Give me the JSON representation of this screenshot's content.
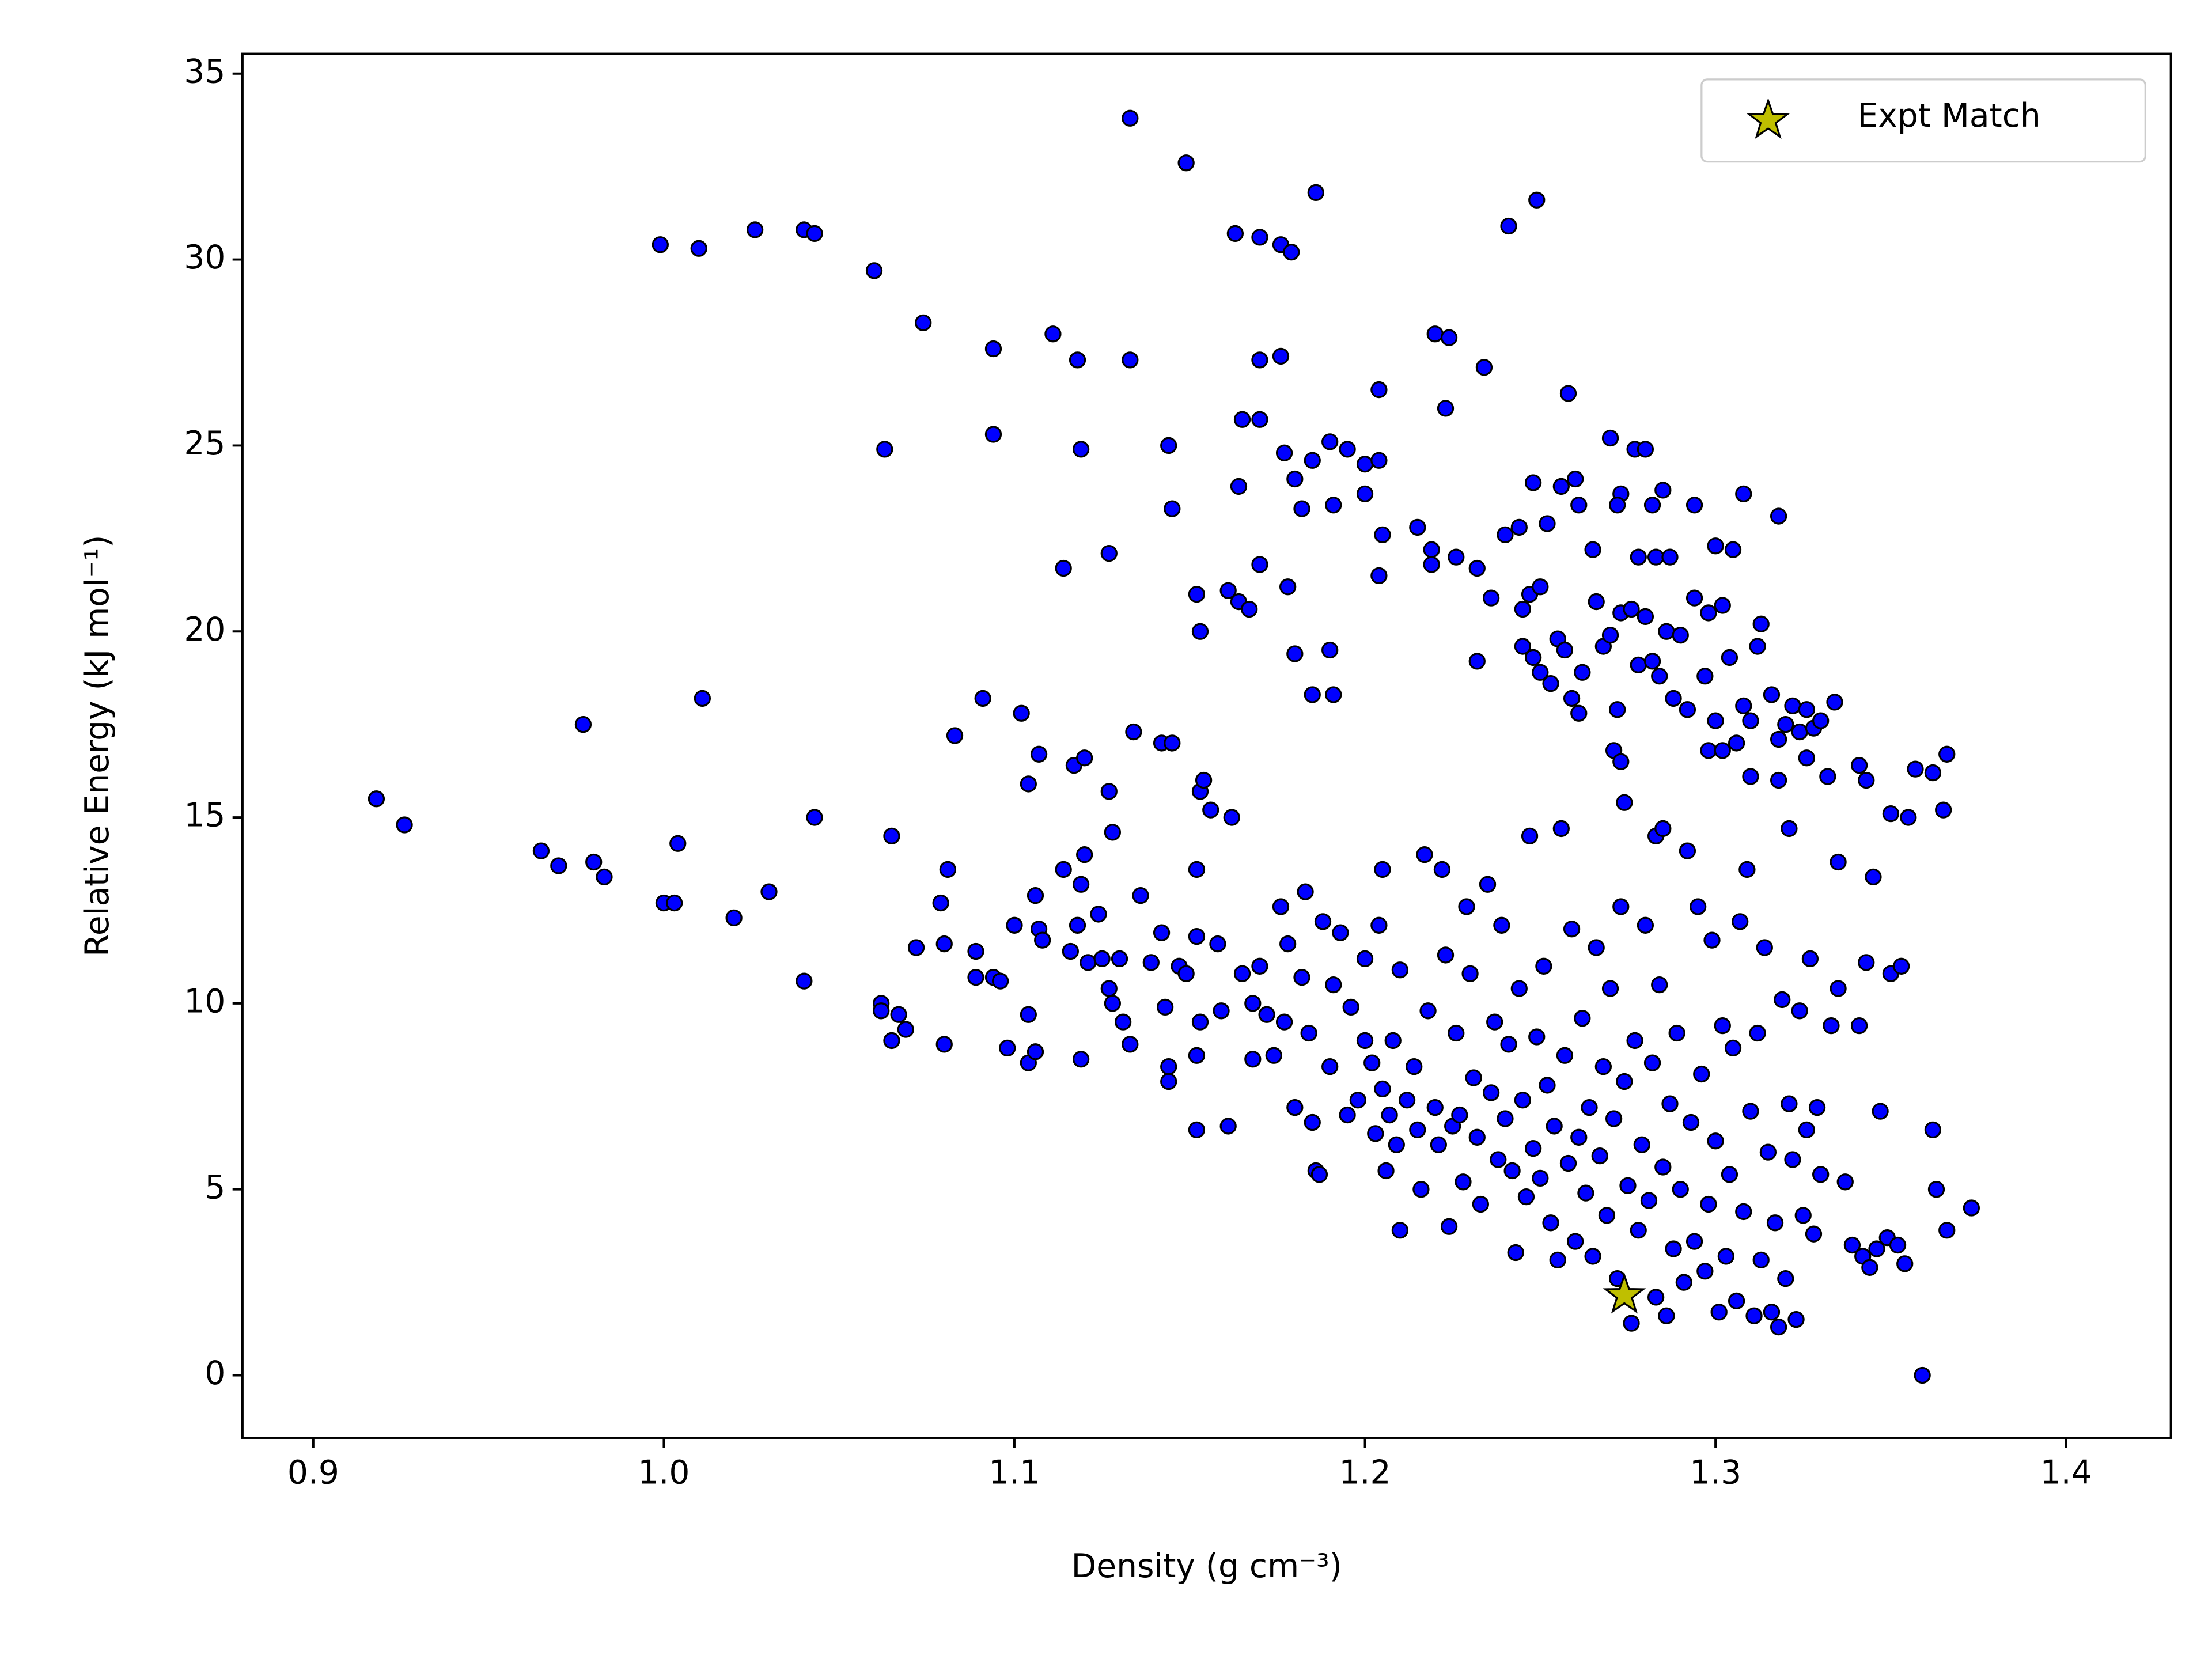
{
  "chart_data": {
    "type": "scatter",
    "xlabel": "Density (g cm⁻³)",
    "ylabel": "Relative Energy (kJ mol⁻¹)",
    "xlim": [
      0.8798,
      1.4299
    ],
    "ylim": [
      -1.68,
      35.53
    ],
    "xticks": [
      0.9,
      {
        "value": 1,
        "label": "1.0"
      },
      1.1,
      1.2,
      1.3,
      1.4
    ],
    "yticks": [
      0,
      5,
      10,
      15,
      20,
      25,
      30,
      35
    ],
    "legend": "upper right",
    "series": [
      {
        "color": "#0000ff",
        "edgecolor": "#000000",
        "marker": "o",
        "x": [
          1.133,
          1.149,
          1.186,
          1.249,
          1.241,
          0.999,
          1.01,
          1.026,
          1.04,
          1.043,
          1.06,
          1.163,
          1.17,
          1.176,
          1.179,
          1.074,
          1.111,
          1.094,
          1.118,
          1.133,
          1.17,
          1.176,
          1.22,
          1.224,
          1.234,
          1.204,
          1.258,
          1.223,
          1.063,
          1.094,
          1.119,
          1.144,
          1.165,
          1.17,
          1.177,
          1.185,
          1.19,
          1.195,
          1.2,
          1.204,
          1.18,
          1.145,
          1.164,
          1.182,
          1.191,
          1.2,
          1.205,
          1.215,
          1.219,
          1.226,
          1.232,
          1.219,
          1.204,
          1.114,
          1.127,
          1.152,
          1.161,
          1.164,
          1.167,
          1.17,
          1.178,
          1.153,
          1.18,
          1.19,
          1.185,
          1.191,
          1.232,
          1.236,
          1.24,
          1.244,
          1.248,
          1.252,
          1.256,
          1.26,
          1.261,
          1.265,
          1.27,
          1.273,
          1.272,
          1.277,
          1.28,
          1.278,
          1.282,
          1.285,
          1.283,
          1.287,
          1.294,
          1.3,
          1.305,
          1.308,
          1.318,
          1.245,
          1.247,
          1.25,
          1.245,
          1.248,
          1.25,
          1.253,
          1.255,
          1.257,
          1.259,
          1.261,
          1.262,
          1.266,
          1.268,
          1.27,
          1.272,
          1.273,
          1.276,
          1.278,
          1.28,
          1.282,
          1.284,
          1.286,
          1.288,
          1.29,
          1.292,
          1.294,
          1.297,
          1.298,
          1.3,
          1.302,
          1.304,
          1.306,
          1.308,
          1.31,
          1.312,
          1.313,
          1.316,
          1.318,
          1.32,
          1.322,
          1.324,
          1.326,
          1.328,
          1.33,
          1.334,
          1.271,
          1.273,
          1.274,
          1.283,
          1.285,
          1.298,
          1.302,
          1.31,
          1.318,
          1.326,
          1.332,
          1.341,
          1.343,
          1.35,
          1.355,
          1.357,
          1.362,
          1.366,
          1.365,
          1.321,
          1.335,
          1.345,
          0.918,
          0.926,
          0.965,
          0.97,
          0.98,
          0.983,
          0.977,
          1.011,
          1.0,
          1.003,
          1.004,
          1.02,
          1.03,
          1.04,
          1.043,
          1.062,
          1.062,
          1.065,
          1.067,
          1.069,
          1.065,
          1.072,
          1.079,
          1.08,
          1.08,
          1.081,
          1.083,
          1.089,
          1.089,
          1.091,
          1.094,
          1.096,
          1.098,
          1.1,
          1.102,
          1.104,
          1.104,
          1.104,
          1.106,
          1.106,
          1.107,
          1.107,
          1.108,
          1.114,
          1.116,
          1.117,
          1.118,
          1.119,
          1.119,
          1.12,
          1.12,
          1.121,
          1.124,
          1.125,
          1.127,
          1.127,
          1.128,
          1.128,
          1.13,
          1.131,
          1.134,
          1.133,
          1.136,
          1.139,
          1.142,
          1.142,
          1.145,
          1.143,
          1.144,
          1.144,
          1.147,
          1.149,
          1.152,
          1.152,
          1.153,
          1.154,
          1.156,
          1.152,
          1.152,
          1.153,
          1.158,
          1.159,
          1.162,
          1.161,
          1.165,
          1.168,
          1.168,
          1.17,
          1.172,
          1.174,
          1.176,
          1.177,
          1.178,
          1.18,
          1.182,
          1.183,
          1.184,
          1.185,
          1.186,
          1.187,
          1.188,
          1.19,
          1.191,
          1.193,
          1.195,
          1.196,
          1.198,
          1.2,
          1.2,
          1.202,
          1.203,
          1.204,
          1.205,
          1.205,
          1.206,
          1.207,
          1.208,
          1.209,
          1.21,
          1.21,
          1.212,
          1.214,
          1.215,
          1.216,
          1.217,
          1.218,
          1.22,
          1.221,
          1.222,
          1.223,
          1.224,
          1.225,
          1.226,
          1.227,
          1.228,
          1.229,
          1.23,
          1.231,
          1.232,
          1.233,
          1.235,
          1.236,
          1.237,
          1.238,
          1.239,
          1.24,
          1.241,
          1.242,
          1.243,
          1.244,
          1.245,
          1.246,
          1.247,
          1.248,
          1.249,
          1.25,
          1.251,
          1.252,
          1.253,
          1.254,
          1.255,
          1.256,
          1.257,
          1.258,
          1.259,
          1.26,
          1.261,
          1.262,
          1.263,
          1.264,
          1.265,
          1.266,
          1.267,
          1.268,
          1.269,
          1.27,
          1.271,
          1.272,
          1.273,
          1.274,
          1.275,
          1.276,
          1.277,
          1.278,
          1.279,
          1.28,
          1.281,
          1.282,
          1.283,
          1.284,
          1.285,
          1.286,
          1.287,
          1.288,
          1.289,
          1.29,
          1.291,
          1.292,
          1.293,
          1.294,
          1.295,
          1.296,
          1.297,
          1.298,
          1.299,
          1.3,
          1.301,
          1.302,
          1.303,
          1.304,
          1.305,
          1.306,
          1.307,
          1.308,
          1.309,
          1.31,
          1.311,
          1.312,
          1.313,
          1.314,
          1.315,
          1.316,
          1.317,
          1.318,
          1.319,
          1.32,
          1.321,
          1.322,
          1.323,
          1.324,
          1.325,
          1.326,
          1.327,
          1.328,
          1.329,
          1.33,
          1.333,
          1.335,
          1.337,
          1.339,
          1.341,
          1.342,
          1.343,
          1.344,
          1.346,
          1.347,
          1.349,
          1.35,
          1.352,
          1.353,
          1.354,
          1.359,
          1.362,
          1.363,
          1.366,
          1.373
        ],
        "values": [
          33.8,
          32.6,
          31.8,
          31.6,
          30.9,
          30.4,
          30.3,
          30.8,
          30.8,
          30.7,
          29.7,
          30.7,
          30.6,
          30.4,
          30.2,
          28.3,
          28.0,
          27.6,
          27.3,
          27.3,
          27.3,
          27.4,
          28.0,
          27.9,
          27.1,
          26.5,
          26.4,
          26.0,
          24.9,
          25.3,
          24.9,
          25.0,
          25.7,
          25.7,
          24.8,
          24.6,
          25.1,
          24.9,
          24.5,
          24.6,
          24.1,
          23.3,
          23.9,
          23.3,
          23.4,
          23.7,
          22.6,
          22.8,
          22.2,
          22.0,
          21.7,
          21.8,
          21.5,
          21.7,
          22.1,
          21.0,
          21.1,
          20.8,
          20.6,
          21.8,
          21.2,
          20.0,
          19.4,
          19.5,
          18.3,
          18.3,
          19.2,
          20.9,
          22.6,
          22.8,
          24.0,
          22.9,
          23.9,
          24.1,
          23.4,
          22.2,
          25.2,
          23.7,
          23.4,
          24.9,
          24.9,
          22.0,
          23.4,
          23.8,
          22.0,
          22.0,
          23.4,
          22.3,
          22.2,
          23.7,
          23.1,
          20.6,
          21.0,
          21.2,
          19.6,
          19.3,
          18.9,
          18.6,
          19.8,
          19.5,
          18.2,
          17.8,
          18.9,
          20.8,
          19.6,
          19.9,
          17.9,
          20.5,
          20.6,
          19.1,
          20.4,
          19.2,
          18.8,
          20.0,
          18.2,
          19.9,
          17.9,
          20.9,
          18.8,
          20.5,
          17.6,
          20.7,
          19.3,
          17.0,
          18.0,
          17.6,
          19.6,
          20.2,
          18.3,
          17.1,
          17.5,
          18.0,
          17.3,
          17.9,
          17.4,
          17.6,
          18.1,
          16.8,
          16.5,
          15.4,
          14.5,
          14.7,
          16.8,
          16.8,
          16.1,
          16.0,
          16.6,
          16.1,
          16.4,
          16.0,
          15.1,
          15.0,
          16.3,
          16.2,
          16.7,
          15.2,
          14.7,
          13.8,
          13.4,
          15.5,
          14.8,
          14.1,
          13.7,
          13.8,
          13.4,
          17.5,
          18.2,
          12.7,
          12.7,
          14.3,
          12.3,
          13.0,
          10.6,
          15.0,
          10.0,
          9.8,
          9.0,
          9.7,
          9.3,
          14.5,
          11.5,
          12.7,
          11.6,
          8.9,
          13.6,
          17.2,
          11.4,
          10.7,
          18.2,
          10.7,
          10.6,
          8.8,
          12.1,
          17.8,
          8.4,
          9.7,
          15.9,
          12.9,
          8.7,
          16.7,
          12.0,
          11.7,
          13.6,
          11.4,
          16.4,
          12.1,
          13.2,
          8.5,
          14.0,
          16.6,
          11.1,
          12.4,
          11.2,
          10.4,
          15.7,
          14.6,
          10.0,
          11.2,
          9.5,
          17.3,
          8.9,
          12.9,
          11.1,
          11.9,
          17.0,
          17.0,
          9.9,
          8.3,
          7.9,
          11.0,
          10.8,
          11.8,
          13.6,
          15.7,
          16.0,
          15.2,
          8.6,
          6.6,
          9.5,
          11.6,
          9.8,
          15.0,
          6.7,
          10.8,
          10.0,
          8.5,
          11.0,
          9.7,
          8.6,
          12.6,
          9.5,
          11.6,
          7.2,
          10.7,
          13.0,
          9.2,
          6.8,
          5.5,
          5.4,
          12.2,
          8.3,
          10.5,
          11.9,
          7.0,
          9.9,
          7.4,
          11.2,
          9.0,
          8.4,
          6.5,
          12.1,
          13.6,
          7.7,
          5.5,
          7.0,
          9.0,
          6.2,
          10.9,
          3.9,
          7.4,
          8.3,
          6.6,
          5.0,
          14.0,
          9.8,
          7.2,
          6.2,
          13.6,
          11.3,
          4.0,
          6.7,
          9.2,
          7.0,
          5.2,
          12.6,
          10.8,
          8.0,
          6.4,
          4.6,
          13.2,
          7.6,
          9.5,
          5.8,
          12.1,
          6.9,
          8.9,
          5.5,
          3.3,
          10.4,
          7.4,
          4.8,
          14.5,
          6.1,
          9.1,
          5.3,
          11.0,
          7.8,
          4.1,
          6.7,
          3.1,
          14.7,
          8.6,
          5.7,
          12.0,
          3.6,
          6.4,
          9.6,
          4.9,
          7.2,
          3.2,
          11.5,
          5.9,
          8.3,
          4.3,
          10.4,
          6.9,
          2.6,
          12.6,
          7.9,
          5.1,
          1.4,
          9.0,
          3.9,
          6.2,
          12.1,
          4.7,
          8.4,
          2.1,
          10.5,
          5.6,
          1.6,
          7.3,
          3.4,
          9.2,
          5.0,
          2.5,
          14.1,
          6.8,
          3.6,
          12.6,
          8.1,
          2.8,
          4.6,
          11.7,
          6.3,
          1.7,
          9.4,
          3.2,
          5.4,
          8.8,
          2.0,
          12.2,
          4.4,
          13.6,
          7.1,
          1.6,
          9.2,
          3.1,
          11.5,
          6.0,
          1.7,
          4.1,
          1.3,
          10.1,
          2.6,
          7.3,
          5.8,
          1.5,
          9.8,
          4.3,
          6.6,
          11.2,
          3.8,
          7.2,
          5.4,
          9.4,
          10.4,
          5.2,
          3.5,
          9.4,
          3.2,
          11.1,
          2.9,
          3.4,
          7.1,
          3.7,
          10.8,
          3.5,
          11.0,
          3.0,
          0.0,
          6.6,
          5.0,
          3.9,
          4.5
        ]
      },
      {
        "name": "Expt Match",
        "color": "#bfbf00",
        "edgecolor": "#000000",
        "marker": "*",
        "x": [
          1.274
        ],
        "values": [
          2.15
        ]
      }
    ]
  }
}
